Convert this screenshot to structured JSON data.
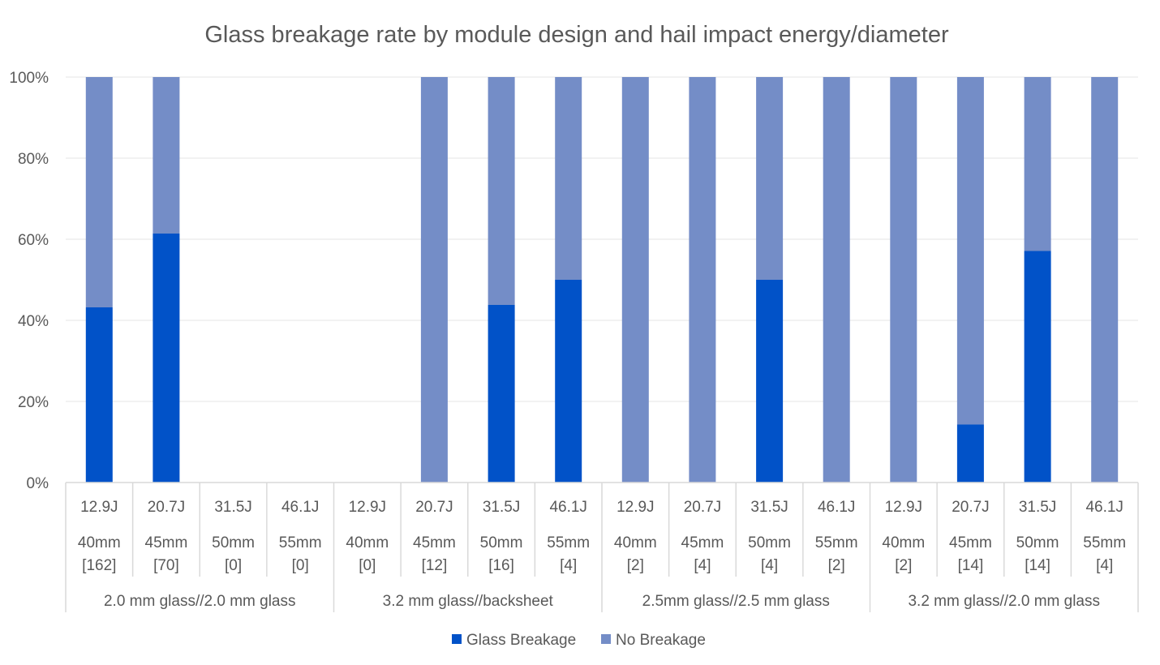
{
  "chart_data": {
    "type": "bar",
    "stacked": true,
    "title": "Glass breakage rate by module design and hail impact energy/diameter",
    "ylim": [
      0,
      100
    ],
    "yticks": [
      "0%",
      "20%",
      "40%",
      "60%",
      "80%",
      "100%"
    ],
    "grid": true,
    "legend_position": "bottom",
    "groups": [
      "2.0 mm glass//2.0 mm glass",
      "3.2 mm glass//backsheet",
      "2.5mm glass//2.5 mm glass",
      "3.2 mm glass//2.0 mm glass"
    ],
    "categories": [
      {
        "energy": "12.9J",
        "diameter": "40mm",
        "count": "[162]"
      },
      {
        "energy": "20.7J",
        "diameter": "45mm",
        "count": "[70]"
      },
      {
        "energy": "31.5J",
        "diameter": "50mm",
        "count": "[0]"
      },
      {
        "energy": "46.1J",
        "diameter": "55mm",
        "count": "[0]"
      },
      {
        "energy": "12.9J",
        "diameter": "40mm",
        "count": "[0]"
      },
      {
        "energy": "20.7J",
        "diameter": "45mm",
        "count": "[12]"
      },
      {
        "energy": "31.5J",
        "diameter": "50mm",
        "count": "[16]"
      },
      {
        "energy": "46.1J",
        "diameter": "55mm",
        "count": "[4]"
      },
      {
        "energy": "12.9J",
        "diameter": "40mm",
        "count": "[2]"
      },
      {
        "energy": "20.7J",
        "diameter": "45mm",
        "count": "[4]"
      },
      {
        "energy": "31.5J",
        "diameter": "50mm",
        "count": "[4]"
      },
      {
        "energy": "46.1J",
        "diameter": "55mm",
        "count": "[2]"
      },
      {
        "energy": "12.9J",
        "diameter": "40mm",
        "count": "[2]"
      },
      {
        "energy": "20.7J",
        "diameter": "45mm",
        "count": "[14]"
      },
      {
        "energy": "31.5J",
        "diameter": "50mm",
        "count": "[14]"
      },
      {
        "energy": "46.1J",
        "diameter": "55mm",
        "count": "[4]"
      }
    ],
    "series": [
      {
        "name": "Glass Breakage",
        "color": "#0152C8",
        "values": [
          43.2,
          61.4,
          0,
          0,
          0,
          0,
          43.8,
          50,
          0,
          0,
          50,
          0,
          0,
          14.3,
          57.1,
          0
        ]
      },
      {
        "name": "No Breakage",
        "color": "#748DC7",
        "values": [
          56.8,
          38.6,
          0,
          0,
          0,
          100,
          56.2,
          50,
          100,
          100,
          50,
          100,
          100,
          85.7,
          42.9,
          100
        ]
      }
    ]
  }
}
